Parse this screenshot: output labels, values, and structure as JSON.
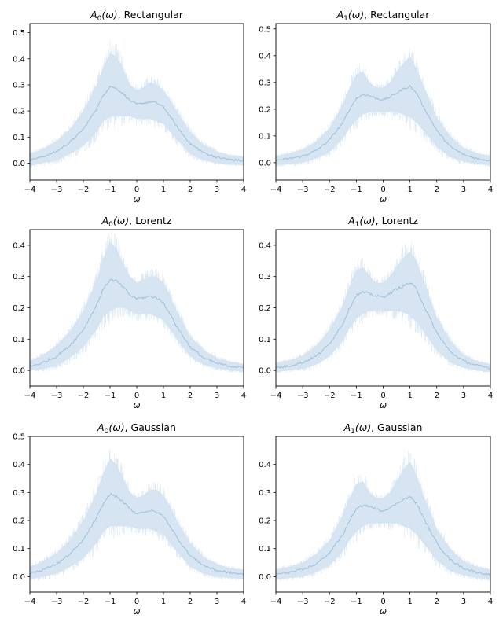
{
  "colors": {
    "band": "#c5d9ea",
    "band_noise": "#d6e5f1",
    "line": "#9ec0d8",
    "axis": "#000000"
  },
  "chart_data": [
    {
      "type": "line",
      "title_var": "A",
      "title_sub": "0",
      "title_arg": "(ω)",
      "title_tail": ", Rectangular",
      "xlabel": "ω",
      "xlim": [
        -4,
        4
      ],
      "ylim": [
        -0.065,
        0.535
      ],
      "xticks": [
        -4,
        -3,
        -2,
        -1,
        0,
        1,
        2,
        3,
        4
      ],
      "yticks": [
        0.0,
        0.1,
        0.2,
        0.3,
        0.4,
        0.5
      ],
      "ytick_labels": [
        "0.0",
        "0.1",
        "0.2",
        "0.3",
        "0.4",
        "0.5"
      ],
      "x": [
        -4,
        -3.5,
        -3,
        -2.5,
        -2,
        -1.5,
        -1.25,
        -1,
        -0.75,
        -0.5,
        -0.25,
        0,
        0.25,
        0.5,
        0.75,
        1,
        1.25,
        1.5,
        2,
        2.5,
        3,
        3.5,
        4
      ],
      "y": [
        0.012,
        0.025,
        0.045,
        0.08,
        0.13,
        0.21,
        0.26,
        0.295,
        0.285,
        0.265,
        0.24,
        0.225,
        0.23,
        0.235,
        0.23,
        0.215,
        0.18,
        0.14,
        0.075,
        0.04,
        0.022,
        0.014,
        0.008
      ],
      "band_upper": [
        0.035,
        0.055,
        0.085,
        0.13,
        0.2,
        0.3,
        0.37,
        0.42,
        0.41,
        0.36,
        0.3,
        0.28,
        0.29,
        0.31,
        0.3,
        0.28,
        0.24,
        0.2,
        0.12,
        0.07,
        0.045,
        0.03,
        0.025
      ],
      "band_lower": [
        -0.01,
        0.0,
        0.01,
        0.035,
        0.065,
        0.12,
        0.16,
        0.18,
        0.18,
        0.18,
        0.18,
        0.17,
        0.17,
        0.17,
        0.16,
        0.15,
        0.12,
        0.09,
        0.035,
        0.01,
        0.0,
        -0.005,
        -0.008
      ]
    },
    {
      "type": "line",
      "title_var": "A",
      "title_sub": "1",
      "title_arg": "(ω)",
      "title_tail": ", Rectangular",
      "xlabel": "ω",
      "xlim": [
        -4,
        4
      ],
      "ylim": [
        -0.065,
        0.52
      ],
      "xticks": [
        -4,
        -3,
        -2,
        -1,
        0,
        1,
        2,
        3,
        4
      ],
      "yticks": [
        0.0,
        0.1,
        0.2,
        0.3,
        0.4,
        0.5
      ],
      "ytick_labels": [
        "0.0",
        "0.1",
        "0.2",
        "0.3",
        "0.4",
        "0.5"
      ],
      "x": [
        -4,
        -3.5,
        -3,
        -2.5,
        -2,
        -1.5,
        -1.25,
        -1,
        -0.75,
        -0.5,
        -0.25,
        0,
        0.25,
        0.5,
        0.75,
        1,
        1.25,
        1.5,
        2,
        2.5,
        3,
        3.5,
        4
      ],
      "y": [
        0.008,
        0.015,
        0.025,
        0.045,
        0.085,
        0.15,
        0.2,
        0.24,
        0.255,
        0.25,
        0.24,
        0.235,
        0.245,
        0.26,
        0.275,
        0.285,
        0.26,
        0.21,
        0.12,
        0.06,
        0.03,
        0.015,
        0.008
      ],
      "band_upper": [
        0.025,
        0.035,
        0.05,
        0.08,
        0.13,
        0.22,
        0.28,
        0.33,
        0.34,
        0.3,
        0.28,
        0.28,
        0.3,
        0.34,
        0.37,
        0.4,
        0.35,
        0.29,
        0.17,
        0.1,
        0.055,
        0.035,
        0.025
      ],
      "band_lower": [
        -0.01,
        -0.005,
        0.0,
        0.015,
        0.04,
        0.09,
        0.13,
        0.16,
        0.18,
        0.19,
        0.19,
        0.19,
        0.19,
        0.19,
        0.18,
        0.17,
        0.15,
        0.12,
        0.06,
        0.02,
        0.005,
        -0.005,
        -0.01
      ]
    },
    {
      "type": "line",
      "title_var": "A",
      "title_sub": "0",
      "title_arg": "(ω)",
      "title_tail": ", Lorentz",
      "xlabel": "ω",
      "xlim": [
        -4,
        4
      ],
      "ylim": [
        -0.05,
        0.45
      ],
      "xticks": [
        -4,
        -3,
        -2,
        -1,
        0,
        1,
        2,
        3,
        4
      ],
      "yticks": [
        0.0,
        0.1,
        0.2,
        0.3,
        0.4
      ],
      "ytick_labels": [
        "0.0",
        "0.1",
        "0.2",
        "0.3",
        "0.4"
      ],
      "x": [
        -4,
        -3.5,
        -3,
        -2.5,
        -2,
        -1.5,
        -1.25,
        -1,
        -0.75,
        -0.5,
        -0.25,
        0,
        0.25,
        0.5,
        0.75,
        1,
        1.25,
        1.5,
        2,
        2.5,
        3,
        3.5,
        4
      ],
      "y": [
        0.012,
        0.025,
        0.045,
        0.08,
        0.13,
        0.21,
        0.26,
        0.29,
        0.285,
        0.265,
        0.24,
        0.23,
        0.232,
        0.237,
        0.232,
        0.215,
        0.18,
        0.14,
        0.075,
        0.04,
        0.022,
        0.014,
        0.008
      ],
      "band_upper": [
        0.03,
        0.05,
        0.08,
        0.125,
        0.19,
        0.29,
        0.36,
        0.41,
        0.39,
        0.34,
        0.3,
        0.28,
        0.29,
        0.3,
        0.3,
        0.28,
        0.24,
        0.19,
        0.11,
        0.065,
        0.04,
        0.028,
        0.02
      ],
      "band_lower": [
        0.0,
        0.005,
        0.015,
        0.04,
        0.075,
        0.13,
        0.17,
        0.19,
        0.2,
        0.2,
        0.19,
        0.18,
        0.18,
        0.18,
        0.17,
        0.16,
        0.13,
        0.1,
        0.045,
        0.018,
        0.006,
        0.0,
        -0.004
      ]
    },
    {
      "type": "line",
      "title_var": "A",
      "title_sub": "1",
      "title_arg": "(ω)",
      "title_tail": ", Lorentz",
      "xlabel": "ω",
      "xlim": [
        -4,
        4
      ],
      "ylim": [
        -0.05,
        0.45
      ],
      "xticks": [
        -4,
        -3,
        -2,
        -1,
        0,
        1,
        2,
        3,
        4
      ],
      "yticks": [
        0.0,
        0.1,
        0.2,
        0.3,
        0.4
      ],
      "ytick_labels": [
        "0.0",
        "0.1",
        "0.2",
        "0.3",
        "0.4"
      ],
      "x": [
        -4,
        -3.5,
        -3,
        -2.5,
        -2,
        -1.5,
        -1.25,
        -1,
        -0.75,
        -0.5,
        -0.25,
        0,
        0.25,
        0.5,
        0.75,
        1,
        1.25,
        1.5,
        2,
        2.5,
        3,
        3.5,
        4
      ],
      "y": [
        0.008,
        0.015,
        0.025,
        0.045,
        0.085,
        0.15,
        0.2,
        0.24,
        0.25,
        0.245,
        0.237,
        0.235,
        0.245,
        0.26,
        0.27,
        0.28,
        0.26,
        0.21,
        0.12,
        0.06,
        0.03,
        0.015,
        0.008
      ],
      "band_upper": [
        0.022,
        0.032,
        0.048,
        0.078,
        0.13,
        0.21,
        0.27,
        0.32,
        0.33,
        0.3,
        0.28,
        0.28,
        0.3,
        0.33,
        0.36,
        0.38,
        0.35,
        0.29,
        0.17,
        0.095,
        0.05,
        0.03,
        0.02
      ],
      "band_lower": [
        -0.005,
        0.0,
        0.005,
        0.018,
        0.045,
        0.095,
        0.135,
        0.165,
        0.18,
        0.19,
        0.19,
        0.19,
        0.19,
        0.19,
        0.185,
        0.175,
        0.155,
        0.125,
        0.065,
        0.025,
        0.008,
        0.0,
        -0.005
      ]
    },
    {
      "type": "line",
      "title_var": "A",
      "title_sub": "0",
      "title_arg": "(ω)",
      "title_tail": ", Gaussian",
      "xlabel": "ω",
      "xlim": [
        -4,
        4
      ],
      "ylim": [
        -0.055,
        0.5
      ],
      "xticks": [
        -4,
        -3,
        -2,
        -1,
        0,
        1,
        2,
        3,
        4
      ],
      "yticks": [
        0.0,
        0.1,
        0.2,
        0.3,
        0.4,
        0.5
      ],
      "ytick_labels": [
        "0.0",
        "0.1",
        "0.2",
        "0.3",
        "0.4",
        "0.5"
      ],
      "x": [
        -4,
        -3.5,
        -3,
        -2.5,
        -2,
        -1.5,
        -1.25,
        -1,
        -0.75,
        -0.5,
        -0.25,
        0,
        0.25,
        0.5,
        0.75,
        1,
        1.25,
        1.5,
        2,
        2.5,
        3,
        3.5,
        4
      ],
      "y": [
        0.012,
        0.025,
        0.045,
        0.08,
        0.13,
        0.21,
        0.26,
        0.295,
        0.285,
        0.265,
        0.24,
        0.225,
        0.23,
        0.235,
        0.23,
        0.215,
        0.18,
        0.14,
        0.075,
        0.04,
        0.022,
        0.014,
        0.008
      ],
      "band_upper": [
        0.035,
        0.055,
        0.085,
        0.13,
        0.2,
        0.3,
        0.37,
        0.42,
        0.4,
        0.35,
        0.3,
        0.28,
        0.29,
        0.31,
        0.31,
        0.29,
        0.25,
        0.2,
        0.12,
        0.07,
        0.045,
        0.03,
        0.025
      ],
      "band_lower": [
        -0.01,
        0.0,
        0.01,
        0.035,
        0.065,
        0.12,
        0.16,
        0.18,
        0.18,
        0.18,
        0.18,
        0.17,
        0.17,
        0.17,
        0.16,
        0.15,
        0.12,
        0.09,
        0.035,
        0.01,
        0.0,
        -0.005,
        -0.008
      ]
    },
    {
      "type": "line",
      "title_var": "A",
      "title_sub": "1",
      "title_arg": "(ω)",
      "title_tail": ", Gaussian",
      "xlabel": "ω",
      "xlim": [
        -4,
        4
      ],
      "ylim": [
        -0.055,
        0.5
      ],
      "xticks": [
        -4,
        -3,
        -2,
        -1,
        0,
        1,
        2,
        3,
        4
      ],
      "yticks": [
        0.0,
        0.1,
        0.2,
        0.3,
        0.4
      ],
      "ytick_labels": [
        "0.0",
        "0.1",
        "0.2",
        "0.3",
        "0.4"
      ],
      "x": [
        -4,
        -3.5,
        -3,
        -2.5,
        -2,
        -1.5,
        -1.25,
        -1,
        -0.75,
        -0.5,
        -0.25,
        0,
        0.25,
        0.5,
        0.75,
        1,
        1.25,
        1.5,
        2,
        2.5,
        3,
        3.5,
        4
      ],
      "y": [
        0.008,
        0.015,
        0.025,
        0.045,
        0.085,
        0.15,
        0.2,
        0.24,
        0.255,
        0.25,
        0.24,
        0.235,
        0.245,
        0.26,
        0.275,
        0.285,
        0.26,
        0.21,
        0.12,
        0.06,
        0.03,
        0.015,
        0.008
      ],
      "band_upper": [
        0.025,
        0.035,
        0.05,
        0.08,
        0.13,
        0.22,
        0.28,
        0.33,
        0.34,
        0.3,
        0.28,
        0.28,
        0.3,
        0.34,
        0.38,
        0.41,
        0.36,
        0.29,
        0.17,
        0.1,
        0.055,
        0.035,
        0.025
      ],
      "band_lower": [
        -0.01,
        -0.005,
        0.0,
        0.015,
        0.04,
        0.09,
        0.13,
        0.16,
        0.18,
        0.19,
        0.19,
        0.19,
        0.19,
        0.19,
        0.18,
        0.17,
        0.15,
        0.12,
        0.06,
        0.02,
        0.005,
        -0.005,
        -0.01
      ]
    }
  ]
}
